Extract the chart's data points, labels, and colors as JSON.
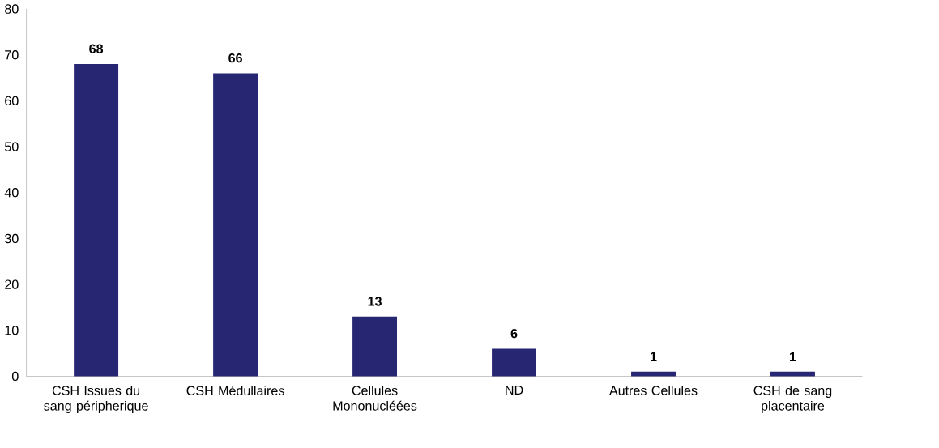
{
  "chart_data": {
    "type": "bar",
    "categories": [
      "CSH Issues du sang péripherique",
      "CSH Médullaires",
      "Cellules Mononucléées",
      "ND",
      "Autres Cellules",
      "CSH de sang placentaire"
    ],
    "values": [
      68,
      66,
      13,
      6,
      1,
      1
    ],
    "color": "#262673",
    "ylim": [
      0,
      80
    ],
    "yticks": [
      0,
      10,
      20,
      30,
      40,
      50,
      60,
      70,
      80
    ],
    "data_labels": true,
    "grid": false
  }
}
